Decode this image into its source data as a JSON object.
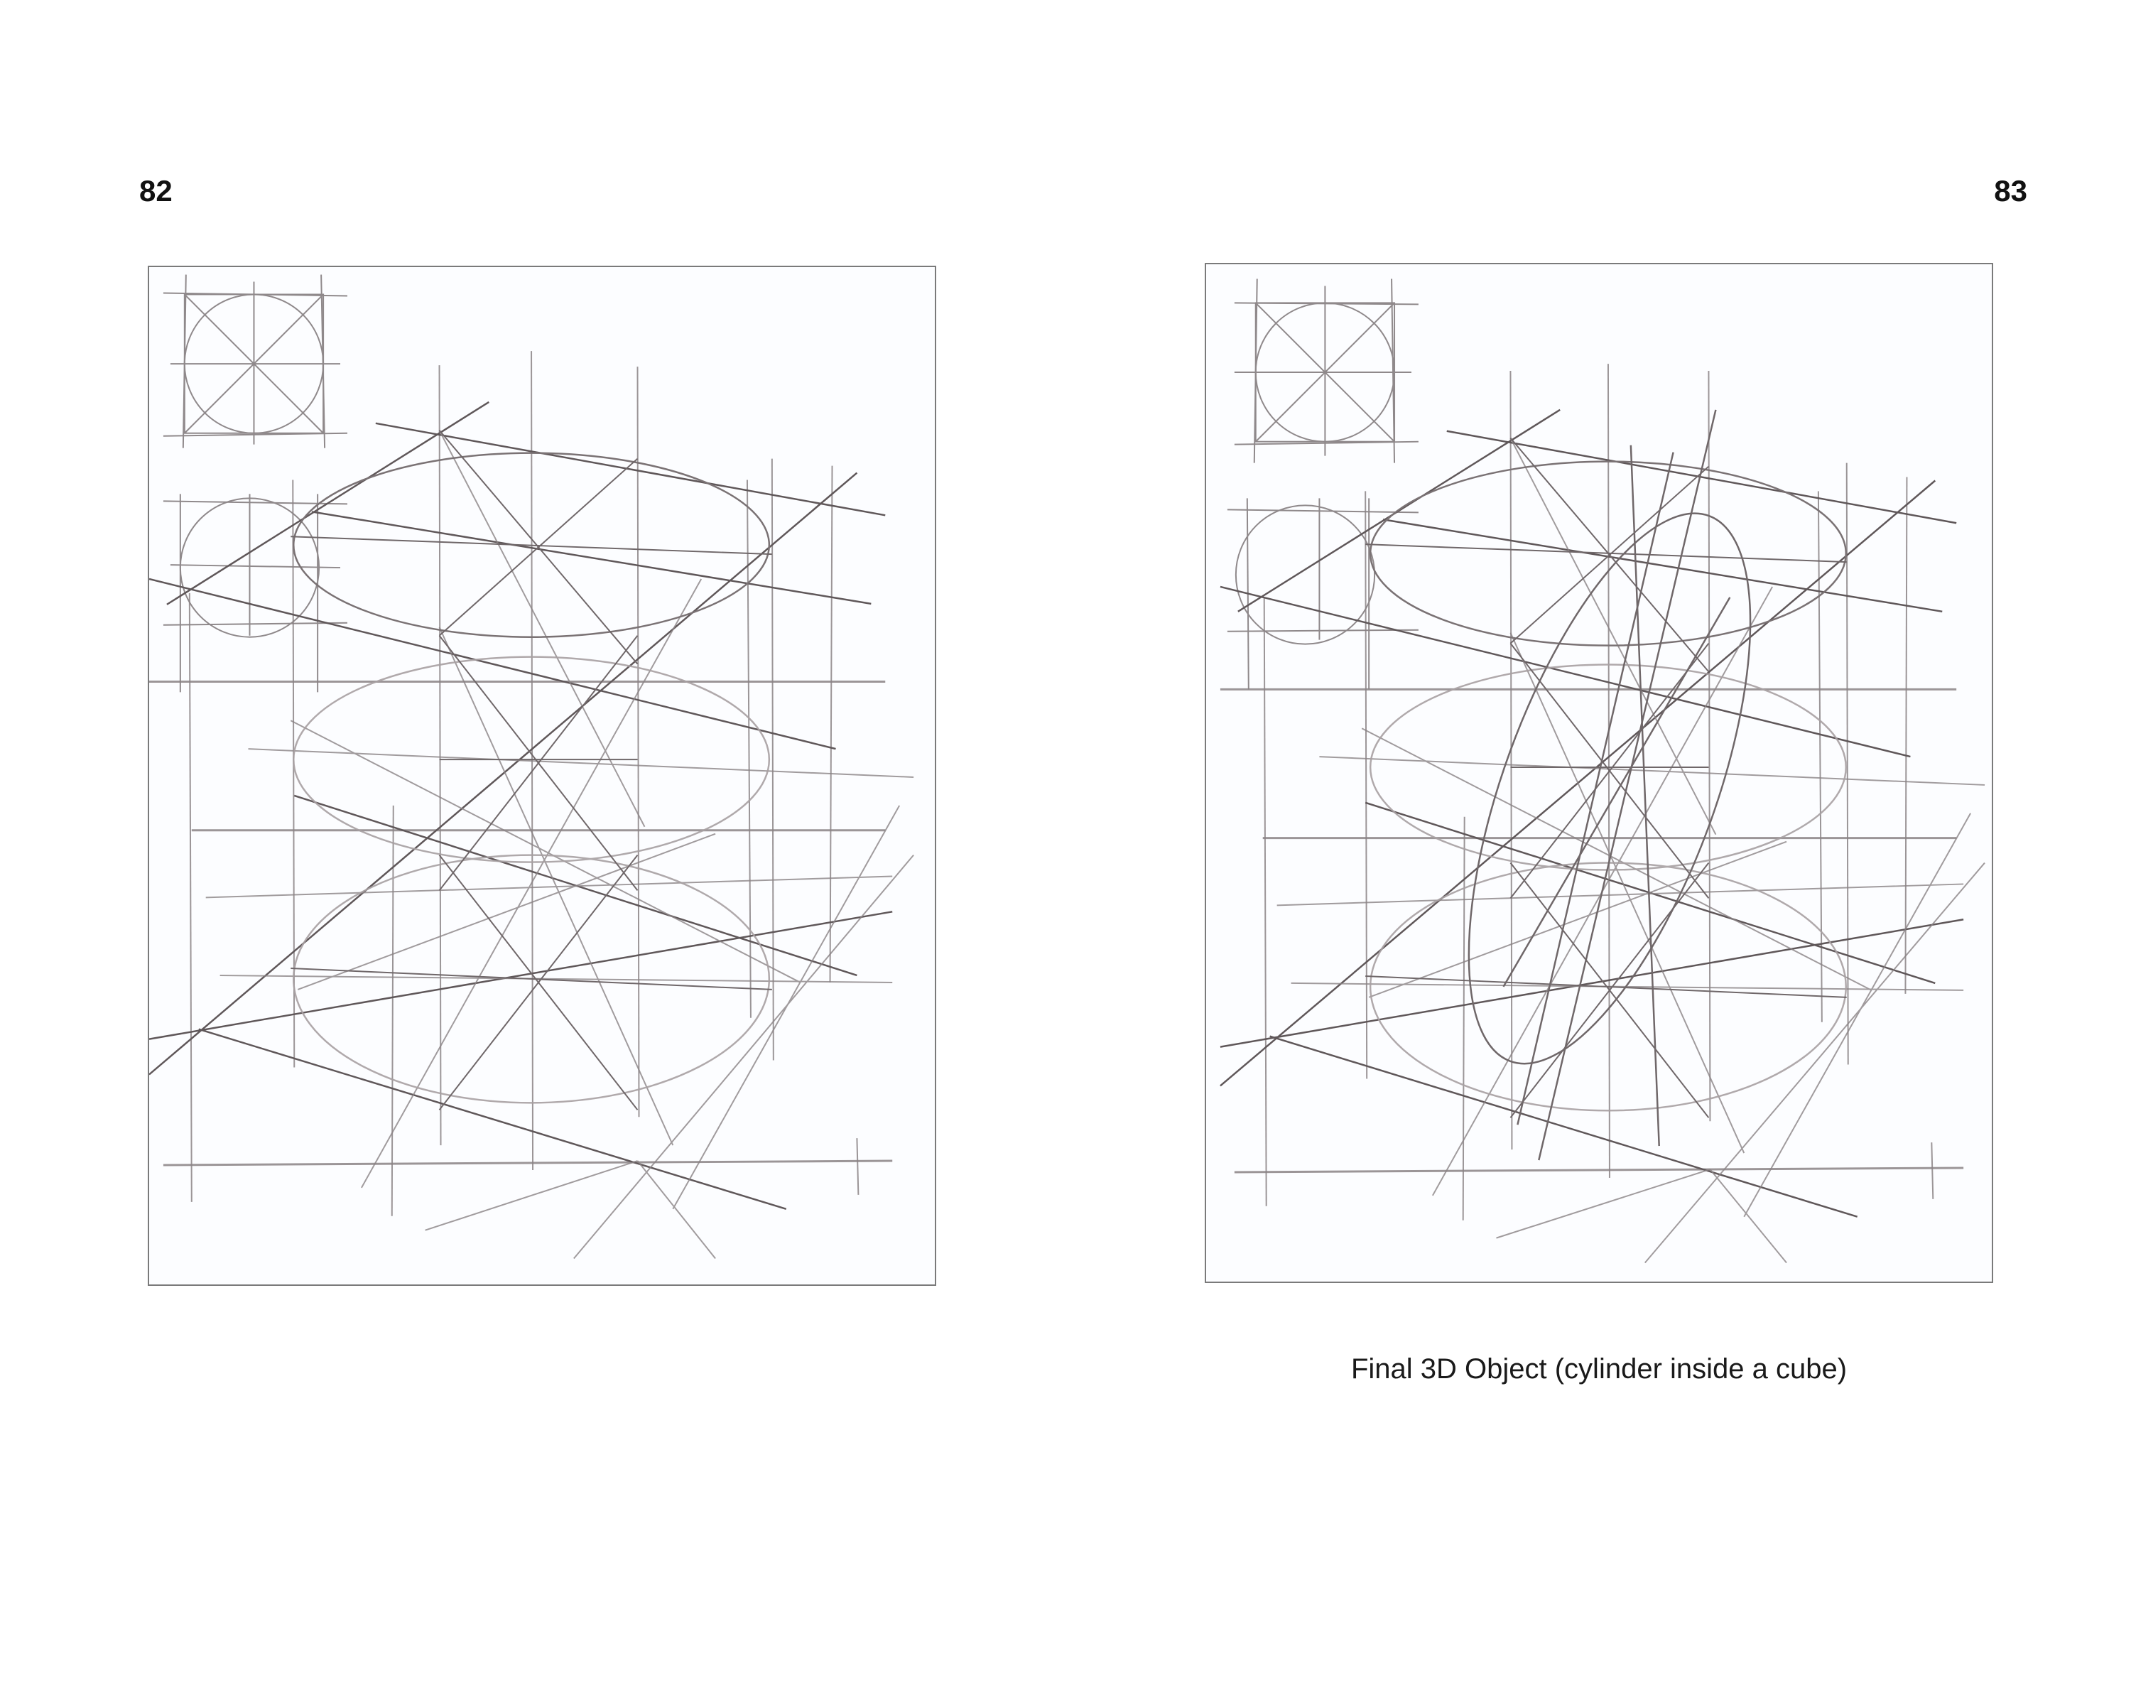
{
  "spread": {
    "left_page": {
      "page_number": "82"
    },
    "right_page": {
      "page_number": "83",
      "caption": "Final 3D Object (cylinder inside a cube)"
    }
  },
  "colors": {
    "page_background": "#ffffff",
    "frame_background": "#fcfdff",
    "frame_border": "#7a7a7a",
    "pencil_dark": "#6b6265",
    "pencil_light": "#b9b3b6",
    "text": "#111111"
  }
}
